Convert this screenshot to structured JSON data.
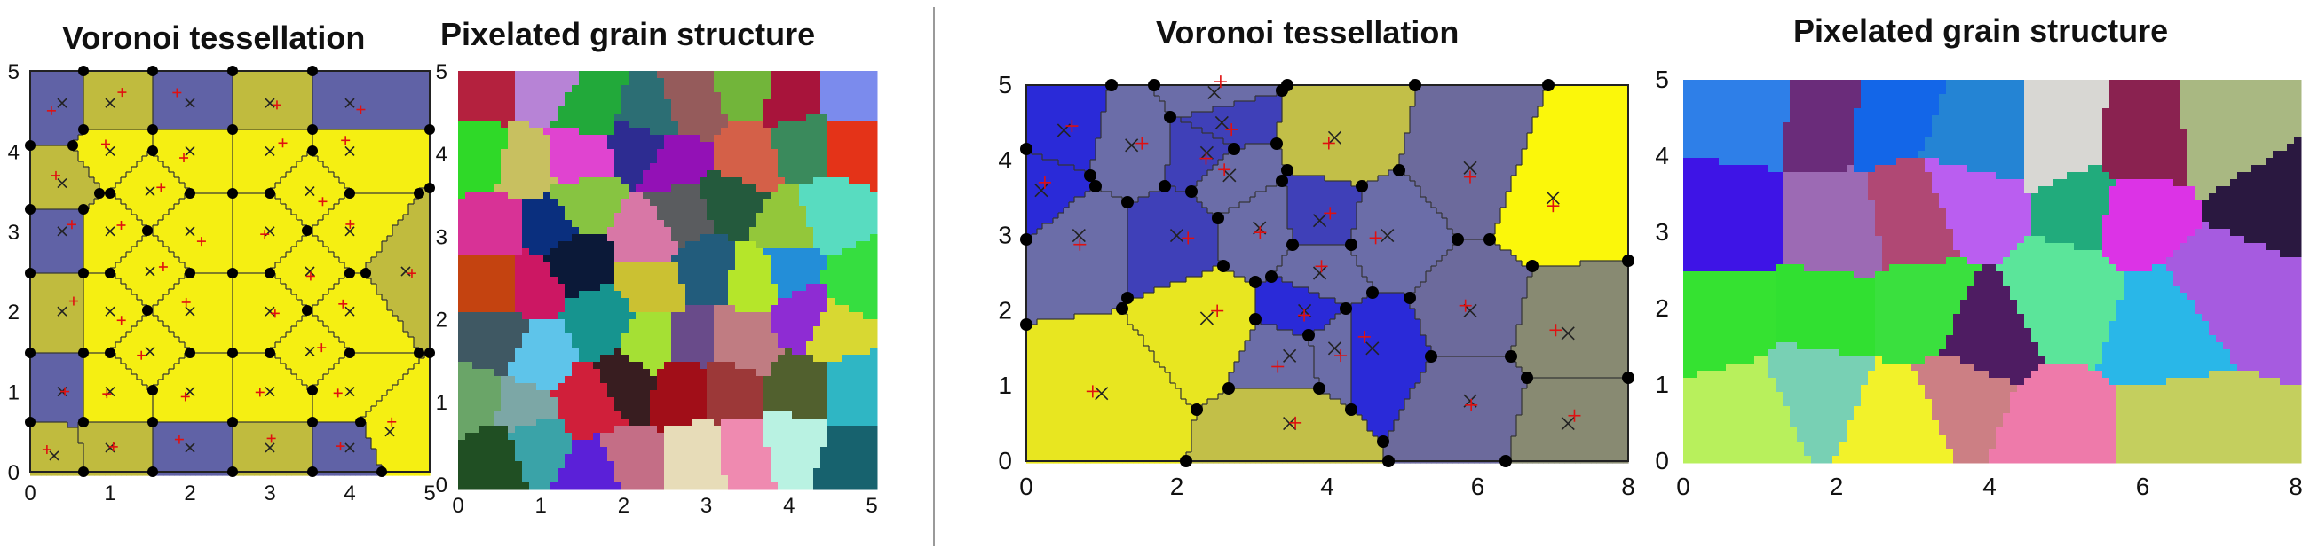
{
  "titles": {
    "left_voronoi": "Voronoi tessellation",
    "left_pixel": "Pixelated grain structure",
    "right_voronoi": "Voronoi tessellation",
    "right_pixel": "Pixelated grain structure"
  },
  "colors": {
    "grain_yellow": "#f5ef12",
    "boundary_grain_olive": "#c0bb3e",
    "boundary_grain_blue": "#6062a6",
    "vertex": "#000000",
    "seed_cross": "#222222",
    "seed_plus": "#e01010"
  },
  "chart_data": [
    {
      "type": "voronoi",
      "panel": "left-voronoi",
      "title": "Voronoi tessellation",
      "xlim": [
        0,
        5
      ],
      "ylim": [
        0,
        5
      ],
      "xticks": [
        "0",
        "1",
        "2",
        "3",
        "4",
        "5"
      ],
      "yticks": [
        "0",
        "1",
        "2",
        "3",
        "4",
        "5"
      ],
      "seeds_x": [
        [
          0.4,
          4.6
        ],
        [
          1.0,
          4.6
        ],
        [
          2.0,
          4.6
        ],
        [
          3.0,
          4.6
        ],
        [
          4.0,
          4.6
        ],
        [
          1.0,
          4.0
        ],
        [
          2.0,
          4.0
        ],
        [
          3.0,
          4.0
        ],
        [
          4.0,
          4.0
        ],
        [
          0.4,
          3.6
        ],
        [
          0.4,
          3.0
        ],
        [
          1.0,
          3.0
        ],
        [
          2.0,
          3.0
        ],
        [
          3.0,
          3.0
        ],
        [
          4.0,
          3.0
        ],
        [
          1.5,
          3.5
        ],
        [
          3.5,
          3.5
        ],
        [
          0.4,
          2.0
        ],
        [
          1.0,
          2.0
        ],
        [
          2.0,
          2.0
        ],
        [
          3.0,
          2.0
        ],
        [
          4.0,
          2.0
        ],
        [
          1.5,
          2.5
        ],
        [
          3.5,
          2.5
        ],
        [
          0.4,
          1.0
        ],
        [
          1.0,
          1.0
        ],
        [
          2.0,
          1.0
        ],
        [
          3.0,
          1.0
        ],
        [
          4.0,
          1.0
        ],
        [
          1.5,
          1.5
        ],
        [
          3.5,
          1.5
        ],
        [
          1.0,
          0.3
        ],
        [
          2.0,
          0.3
        ],
        [
          3.0,
          0.3
        ],
        [
          4.0,
          0.3
        ],
        [
          0.3,
          0.2
        ],
        [
          4.5,
          0.5
        ],
        [
          4.7,
          2.5
        ]
      ]
    },
    {
      "type": "heatmap",
      "panel": "left-pixelated",
      "title": "Pixelated grain structure",
      "xlim": [
        0,
        5
      ],
      "ylim": [
        0,
        5
      ],
      "xticks": [
        "0",
        "1",
        "2",
        "3",
        "4",
        "5"
      ],
      "yticks": [
        "0",
        "1",
        "2",
        "3",
        "4",
        "5"
      ],
      "grain_colors": [
        "#b4213e",
        "#b783d6",
        "#22a93a",
        "#2c6e74",
        "#955b5b",
        "#72b53a",
        "#a8143b",
        "#7b8bed",
        "#2fd928",
        "#c8c060",
        "#e044d0",
        "#2d2c91",
        "#9311b6",
        "#d46048",
        "#3a8a5c",
        "#e43318",
        "#d83296",
        "#0a2f7e",
        "#87c441",
        "#d877a6",
        "#5a5c5f",
        "#245a3d",
        "#93c73a",
        "#58dcc0",
        "#c44310",
        "#cc1763",
        "#0b1938",
        "#cbc132",
        "#225c7c",
        "#b5e62a",
        "#238ed8",
        "#36de40",
        "#3f5863",
        "#5ec4ea",
        "#16948f",
        "#a5e034",
        "#694b8a",
        "#c07c82",
        "#8e2cd3",
        "#d8d832",
        "#6aa568",
        "#7ca7a6",
        "#d01f3a",
        "#381d20",
        "#a10e18",
        "#9c3838",
        "#51602e",
        "#2fb6c4",
        "#204f23",
        "#3aa3a8",
        "#5b20d8",
        "#c46e86",
        "#e7dcb8",
        "#ef8ab0",
        "#b9f2e2",
        "#17626e"
      ]
    },
    {
      "type": "voronoi",
      "panel": "right-voronoi",
      "title": "Voronoi tessellation",
      "xlim": [
        0,
        8
      ],
      "ylim": [
        0,
        5
      ],
      "xticks": [
        "0",
        "2",
        "4",
        "6",
        "8"
      ],
      "yticks": [
        "0",
        "1",
        "2",
        "3",
        "4",
        "5"
      ],
      "seeds_x": [
        [
          0.5,
          4.4
        ],
        [
          2.5,
          4.9
        ],
        [
          2.6,
          4.5
        ],
        [
          1.4,
          4.2
        ],
        [
          0.2,
          3.6
        ],
        [
          0.7,
          3.0
        ],
        [
          2.4,
          4.1
        ],
        [
          2.7,
          3.8
        ],
        [
          2.0,
          3.0
        ],
        [
          3.1,
          3.1
        ],
        [
          3.9,
          3.2
        ],
        [
          3.9,
          2.5
        ],
        [
          4.1,
          4.3
        ],
        [
          4.8,
          3.0
        ],
        [
          2.4,
          1.9
        ],
        [
          3.7,
          2.0
        ],
        [
          3.5,
          1.4
        ],
        [
          4.1,
          1.5
        ],
        [
          4.6,
          1.5
        ],
        [
          5.9,
          3.9
        ],
        [
          7.0,
          3.5
        ],
        [
          5.9,
          2.0
        ],
        [
          7.2,
          1.7
        ],
        [
          5.9,
          0.8
        ],
        [
          7.2,
          0.5
        ],
        [
          3.5,
          0.5
        ],
        [
          1.0,
          0.9
        ]
      ]
    },
    {
      "type": "heatmap",
      "panel": "right-pixelated",
      "title": "Pixelated grain structure",
      "xlim": [
        0,
        8
      ],
      "ylim": [
        0,
        5
      ],
      "xticks": [
        "0",
        "2",
        "4",
        "6",
        "8"
      ],
      "yticks": [
        "0",
        "1",
        "2",
        "3",
        "4",
        "5"
      ],
      "grain_colors": [
        "#2e7fe8",
        "#6a2c7a",
        "#1366e8",
        "#2484d4",
        "#d8d7d3",
        "#8a2250",
        "#a9b882",
        "#3e14e6",
        "#9c6ab4",
        "#b04874",
        "#ba5ef0",
        "#21ab7c",
        "#dc33e6",
        "#2a1840",
        "#35e231",
        "#31e031",
        "#3ae03e",
        "#4e1c62",
        "#5be59a",
        "#29b7e8",
        "#a65be0",
        "#b8f05c",
        "#78d0b4",
        "#f2f22a",
        "#cc7f84",
        "#ee7aaa",
        "#c4cf5e"
      ]
    }
  ]
}
